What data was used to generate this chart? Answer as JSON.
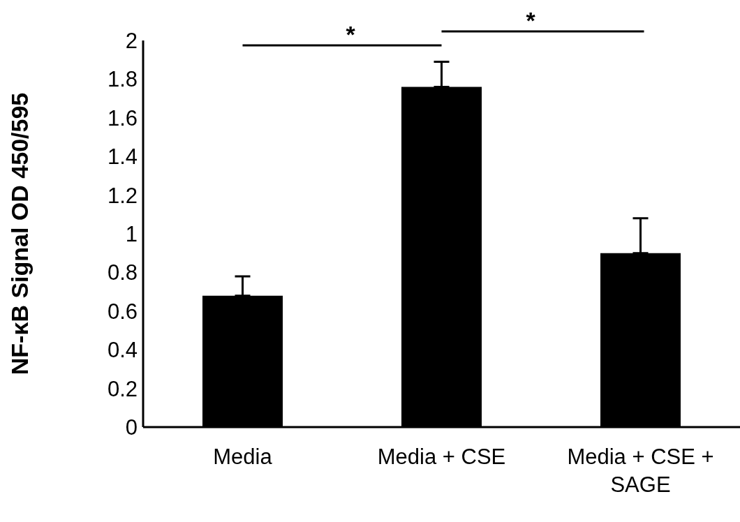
{
  "chart_data": {
    "type": "bar",
    "ylabel": "NF-κB Signal OD 450/595",
    "categories": [
      "Media",
      "Media + CSE",
      "Media + CSE + SAGE"
    ],
    "values": [
      0.68,
      1.76,
      0.9
    ],
    "errors": [
      [
        0.68,
        0.78
      ],
      [
        1.76,
        1.89
      ],
      [
        0.9,
        1.08
      ]
    ],
    "color": "#000000",
    "ylim": [
      0,
      2
    ],
    "yticks": [
      0,
      0.2,
      0.4,
      0.6,
      0.8,
      1,
      1.2,
      1.4,
      1.6,
      1.8,
      2
    ],
    "annotations": [
      "*",
      "*"
    ]
  }
}
